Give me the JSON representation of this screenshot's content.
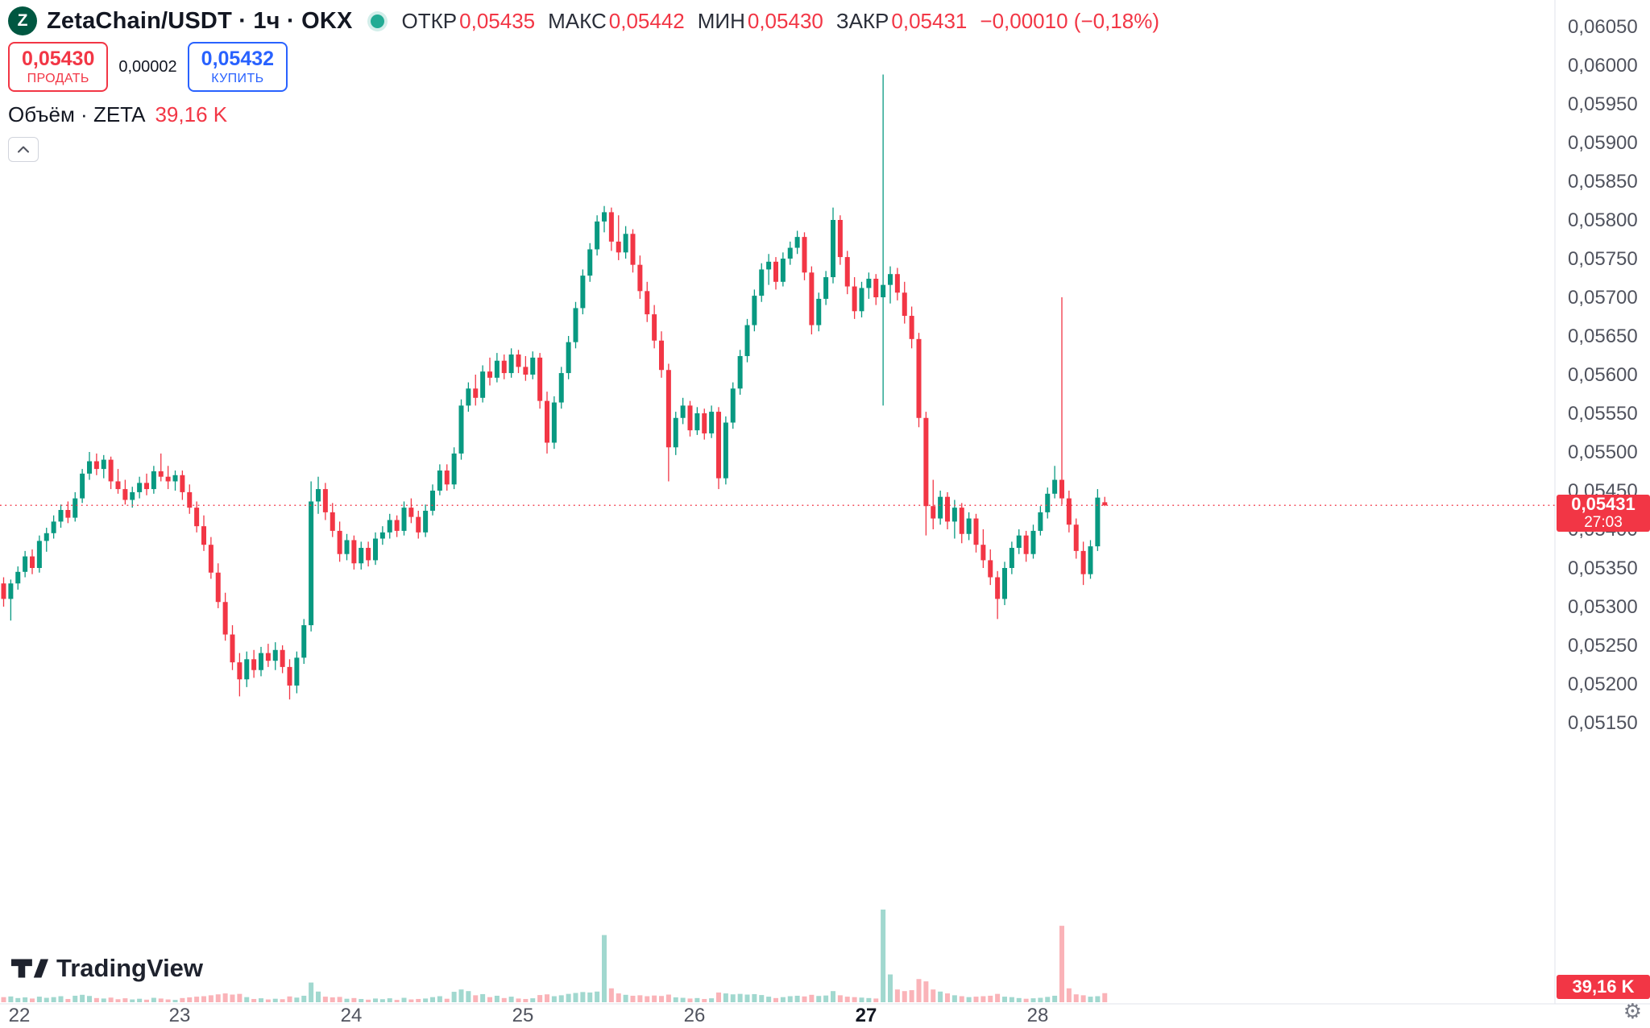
{
  "header": {
    "symbol": "ZetaChain/USDT · 1ч · OKX",
    "logo_letter": "Z",
    "ohlc": {
      "open_label": "ОТКР",
      "open_value": "0,05435",
      "high_label": "МАКС",
      "high_value": "0,05442",
      "low_label": "МИН",
      "low_value": "0,05430",
      "close_label": "ЗАКР",
      "close_value": "0,05431",
      "change": "−0,00010 (−0,18%)"
    },
    "sell": {
      "price": "0,05430",
      "label": "ПРОДАТЬ"
    },
    "spread": "0,00002",
    "buy": {
      "price": "0,05432",
      "label": "КУПИТЬ"
    },
    "volume_label": "Объём · ZETA",
    "volume_value": "39,16 K"
  },
  "footer": {
    "logo_text": "TradingView",
    "settings_icon": "gear-icon"
  },
  "price_axis": {
    "ticks": [
      {
        "v": 0.0605,
        "label": "0,06050"
      },
      {
        "v": 0.06,
        "label": "0,06000"
      },
      {
        "v": 0.0595,
        "label": "0,05950"
      },
      {
        "v": 0.059,
        "label": "0,05900"
      },
      {
        "v": 0.0585,
        "label": "0,05850"
      },
      {
        "v": 0.058,
        "label": "0,05800"
      },
      {
        "v": 0.0575,
        "label": "0,05750"
      },
      {
        "v": 0.057,
        "label": "0,05700"
      },
      {
        "v": 0.0565,
        "label": "0,05650"
      },
      {
        "v": 0.056,
        "label": "0,05600"
      },
      {
        "v": 0.0555,
        "label": "0,05550"
      },
      {
        "v": 0.055,
        "label": "0,05500"
      },
      {
        "v": 0.0545,
        "label": "0,05450"
      },
      {
        "v": 0.054,
        "label": "0,05400"
      },
      {
        "v": 0.0535,
        "label": "0,05350"
      },
      {
        "v": 0.053,
        "label": "0,05300"
      },
      {
        "v": 0.0525,
        "label": "0,05250"
      },
      {
        "v": 0.052,
        "label": "0,05200"
      },
      {
        "v": 0.0515,
        "label": "0,05150"
      }
    ],
    "current_badge": {
      "price": "0,05431",
      "countdown": "27:03"
    },
    "volume_badge": "39,16 K"
  },
  "time_axis": {
    "ticks": [
      {
        "v": 22,
        "label": "22",
        "bold": false
      },
      {
        "v": 23,
        "label": "23",
        "bold": false
      },
      {
        "v": 24,
        "label": "24",
        "bold": false
      },
      {
        "v": 25,
        "label": "25",
        "bold": false
      },
      {
        "v": 26,
        "label": "26",
        "bold": false
      },
      {
        "v": 27,
        "label": "27",
        "bold": true
      },
      {
        "v": 28,
        "label": "28",
        "bold": false
      }
    ]
  },
  "colors": {
    "up": "#089981",
    "down": "#F23645",
    "buy_blue": "#2962FF",
    "sell_red": "#F23645",
    "badge_bg": "#F23645",
    "axis_text": "#50535E",
    "title_text": "#131722",
    "logo_green": "#005741",
    "status_dot": "#22ab94"
  },
  "chart_data": {
    "type": "candlestick",
    "title": "ZetaChain/USDT",
    "interval": "1ч",
    "exchange": "OKX",
    "current_price": 0.05431,
    "current_volume": 39160,
    "last_candle": {
      "open": 0.05435,
      "high": 0.05442,
      "low": 0.0543,
      "close": 0.05431,
      "change": -0.0001,
      "change_pct": -0.18
    },
    "y_axis": {
      "min": 0.0515,
      "max": 0.0605,
      "tick_step": 0.0005
    },
    "x_axis": {
      "unit": "day-of-month",
      "ticks": [
        22,
        23,
        24,
        25,
        26,
        27,
        28
      ]
    },
    "time_base": {
      "first_candle_day": 21.96,
      "hours_per_candle": 1
    },
    "legend": "candles are [open, high, low, close, volume], hourly from day 22 to day 28",
    "candles": [
      [
        0.0533,
        0.05338,
        0.053,
        0.0531,
        22000
      ],
      [
        0.0531,
        0.05335,
        0.05282,
        0.0533,
        25000
      ],
      [
        0.0533,
        0.05352,
        0.05322,
        0.05345,
        18000
      ],
      [
        0.05345,
        0.05372,
        0.05338,
        0.05365,
        21000
      ],
      [
        0.05365,
        0.05374,
        0.05342,
        0.0535,
        16000
      ],
      [
        0.0535,
        0.05392,
        0.05344,
        0.05385,
        24000
      ],
      [
        0.05385,
        0.05402,
        0.05371,
        0.05395,
        19000
      ],
      [
        0.05395,
        0.05418,
        0.05388,
        0.0541,
        22000
      ],
      [
        0.0541,
        0.05432,
        0.05402,
        0.05425,
        26000
      ],
      [
        0.05425,
        0.05436,
        0.05408,
        0.05415,
        14000
      ],
      [
        0.05415,
        0.05448,
        0.0541,
        0.0544,
        28000
      ],
      [
        0.0544,
        0.05478,
        0.05434,
        0.05472,
        32000
      ],
      [
        0.05472,
        0.055,
        0.05464,
        0.05488,
        27000
      ],
      [
        0.05488,
        0.05498,
        0.0547,
        0.05478,
        18000
      ],
      [
        0.05478,
        0.05496,
        0.05466,
        0.0549,
        16000
      ],
      [
        0.0549,
        0.05494,
        0.05452,
        0.05462,
        20000
      ],
      [
        0.05462,
        0.05478,
        0.05446,
        0.05452,
        13000
      ],
      [
        0.05452,
        0.05464,
        0.05432,
        0.05438,
        17000
      ],
      [
        0.05438,
        0.05455,
        0.05428,
        0.05448,
        12000
      ],
      [
        0.05448,
        0.05468,
        0.0544,
        0.0546,
        15000
      ],
      [
        0.0546,
        0.05472,
        0.05444,
        0.05452,
        11000
      ],
      [
        0.05452,
        0.05482,
        0.05446,
        0.05475,
        19000
      ],
      [
        0.05475,
        0.05498,
        0.05462,
        0.05468,
        16000
      ],
      [
        0.05468,
        0.05482,
        0.05452,
        0.05462,
        12000
      ],
      [
        0.05462,
        0.05476,
        0.0545,
        0.0547,
        10000
      ],
      [
        0.0547,
        0.05476,
        0.05438,
        0.05448,
        18000
      ],
      [
        0.05448,
        0.05458,
        0.0542,
        0.05428,
        21000
      ],
      [
        0.05428,
        0.05436,
        0.05396,
        0.05404,
        24000
      ],
      [
        0.05404,
        0.05418,
        0.05372,
        0.0538,
        26000
      ],
      [
        0.0538,
        0.0539,
        0.05336,
        0.05344,
        30000
      ],
      [
        0.05344,
        0.05356,
        0.05298,
        0.05306,
        34000
      ],
      [
        0.05306,
        0.05318,
        0.05256,
        0.05264,
        38000
      ],
      [
        0.05264,
        0.05276,
        0.05218,
        0.05228,
        33000
      ],
      [
        0.05228,
        0.0524,
        0.05184,
        0.05206,
        36000
      ],
      [
        0.05206,
        0.05242,
        0.05196,
        0.05232,
        22000
      ],
      [
        0.05232,
        0.05244,
        0.05208,
        0.05218,
        14000
      ],
      [
        0.05218,
        0.05248,
        0.0521,
        0.0524,
        17000
      ],
      [
        0.0524,
        0.05252,
        0.05222,
        0.0523,
        12000
      ],
      [
        0.0523,
        0.05254,
        0.05218,
        0.05244,
        15000
      ],
      [
        0.05244,
        0.0525,
        0.05214,
        0.05222,
        13000
      ],
      [
        0.05222,
        0.05232,
        0.0518,
        0.05198,
        25000
      ],
      [
        0.05198,
        0.05242,
        0.05188,
        0.05234,
        20000
      ],
      [
        0.05234,
        0.05284,
        0.05226,
        0.05276,
        28000
      ],
      [
        0.05276,
        0.05462,
        0.05268,
        0.05436,
        85000
      ],
      [
        0.05436,
        0.05468,
        0.0542,
        0.05452,
        46000
      ],
      [
        0.05452,
        0.0546,
        0.05412,
        0.05422,
        24000
      ],
      [
        0.05422,
        0.05434,
        0.0539,
        0.05398,
        21000
      ],
      [
        0.05398,
        0.0541,
        0.05358,
        0.05368,
        23000
      ],
      [
        0.05368,
        0.05394,
        0.0536,
        0.05386,
        15000
      ],
      [
        0.05386,
        0.05392,
        0.05348,
        0.05356,
        18000
      ],
      [
        0.05356,
        0.05384,
        0.05348,
        0.05376,
        14000
      ],
      [
        0.05376,
        0.05384,
        0.05352,
        0.0536,
        11000
      ],
      [
        0.0536,
        0.05396,
        0.05354,
        0.05388,
        16000
      ],
      [
        0.05388,
        0.05404,
        0.0538,
        0.05396,
        13000
      ],
      [
        0.05396,
        0.0542,
        0.05388,
        0.05412,
        17000
      ],
      [
        0.05412,
        0.05418,
        0.0539,
        0.05398,
        10000
      ],
      [
        0.05398,
        0.05436,
        0.05392,
        0.05428,
        19000
      ],
      [
        0.05428,
        0.0544,
        0.05408,
        0.05416,
        12000
      ],
      [
        0.05416,
        0.05424,
        0.05388,
        0.05396,
        14000
      ],
      [
        0.05396,
        0.05432,
        0.0539,
        0.05424,
        16000
      ],
      [
        0.05424,
        0.05458,
        0.05418,
        0.0545,
        22000
      ],
      [
        0.0545,
        0.05484,
        0.05444,
        0.05476,
        26000
      ],
      [
        0.05476,
        0.05484,
        0.0545,
        0.05458,
        15000
      ],
      [
        0.05458,
        0.05506,
        0.05452,
        0.05498,
        45000
      ],
      [
        0.05498,
        0.05568,
        0.0549,
        0.0556,
        55000
      ],
      [
        0.0556,
        0.0559,
        0.05552,
        0.05582,
        48000
      ],
      [
        0.05582,
        0.056,
        0.0556,
        0.0557,
        30000
      ],
      [
        0.0557,
        0.05612,
        0.05564,
        0.05604,
        35000
      ],
      [
        0.05604,
        0.05622,
        0.05586,
        0.05596,
        22000
      ],
      [
        0.05596,
        0.05628,
        0.0559,
        0.05618,
        28000
      ],
      [
        0.05618,
        0.05626,
        0.05594,
        0.05602,
        18000
      ],
      [
        0.05602,
        0.05634,
        0.05596,
        0.05626,
        24000
      ],
      [
        0.05626,
        0.05632,
        0.05602,
        0.0561,
        16000
      ],
      [
        0.0561,
        0.05624,
        0.05592,
        0.056,
        14000
      ],
      [
        0.056,
        0.0563,
        0.05594,
        0.05622,
        17000
      ],
      [
        0.05622,
        0.05628,
        0.05556,
        0.05566,
        31000
      ],
      [
        0.05566,
        0.05578,
        0.05498,
        0.05512,
        34000
      ],
      [
        0.05512,
        0.05572,
        0.05504,
        0.05564,
        26000
      ],
      [
        0.05564,
        0.0561,
        0.05556,
        0.05602,
        30000
      ],
      [
        0.05602,
        0.0565,
        0.05594,
        0.05642,
        36000
      ],
      [
        0.05642,
        0.05694,
        0.05634,
        0.05686,
        40000
      ],
      [
        0.05686,
        0.05736,
        0.05678,
        0.05728,
        44000
      ],
      [
        0.05728,
        0.0577,
        0.0572,
        0.05762,
        42000
      ],
      [
        0.05762,
        0.05806,
        0.05754,
        0.05798,
        46000
      ],
      [
        0.05798,
        0.05818,
        0.05784,
        0.0581,
        290000
      ],
      [
        0.0581,
        0.05816,
        0.0576,
        0.05772,
        60000
      ],
      [
        0.05772,
        0.05806,
        0.05748,
        0.05758,
        38000
      ],
      [
        0.05758,
        0.05792,
        0.0575,
        0.05782,
        32000
      ],
      [
        0.05782,
        0.05788,
        0.05732,
        0.05742,
        28000
      ],
      [
        0.05742,
        0.05754,
        0.05698,
        0.05708,
        30000
      ],
      [
        0.05708,
        0.0572,
        0.05668,
        0.05678,
        26000
      ],
      [
        0.05678,
        0.0569,
        0.05634,
        0.05644,
        29000
      ],
      [
        0.05644,
        0.05656,
        0.05596,
        0.05606,
        27000
      ],
      [
        0.05606,
        0.05614,
        0.05462,
        0.05506,
        33000
      ],
      [
        0.05506,
        0.05552,
        0.05496,
        0.05544,
        21000
      ],
      [
        0.05544,
        0.0557,
        0.05536,
        0.0556,
        19000
      ],
      [
        0.0556,
        0.05566,
        0.0552,
        0.05528,
        16000
      ],
      [
        0.05528,
        0.05558,
        0.05522,
        0.0555,
        18000
      ],
      [
        0.0555,
        0.05556,
        0.05516,
        0.05524,
        14000
      ],
      [
        0.05524,
        0.0556,
        0.05518,
        0.05552,
        17000
      ],
      [
        0.05552,
        0.05558,
        0.05452,
        0.05466,
        42000
      ],
      [
        0.05466,
        0.05546,
        0.05458,
        0.05538,
        38000
      ],
      [
        0.05538,
        0.0559,
        0.0553,
        0.05582,
        34000
      ],
      [
        0.05582,
        0.05632,
        0.05574,
        0.05624,
        36000
      ],
      [
        0.05624,
        0.05672,
        0.05616,
        0.05664,
        33000
      ],
      [
        0.05664,
        0.0571,
        0.05656,
        0.05702,
        35000
      ],
      [
        0.05702,
        0.05744,
        0.05694,
        0.05736,
        31000
      ],
      [
        0.05736,
        0.05756,
        0.05716,
        0.05746,
        24000
      ],
      [
        0.05746,
        0.05752,
        0.0571,
        0.0572,
        18000
      ],
      [
        0.0572,
        0.05758,
        0.05714,
        0.0575,
        22000
      ],
      [
        0.0575,
        0.05772,
        0.05742,
        0.05764,
        26000
      ],
      [
        0.05764,
        0.05786,
        0.05756,
        0.05778,
        28000
      ],
      [
        0.05778,
        0.05784,
        0.05722,
        0.05732,
        25000
      ],
      [
        0.05732,
        0.0574,
        0.05652,
        0.05664,
        32000
      ],
      [
        0.05664,
        0.05706,
        0.05656,
        0.05698,
        27000
      ],
      [
        0.05698,
        0.05734,
        0.0569,
        0.05726,
        29000
      ],
      [
        0.05726,
        0.05816,
        0.05718,
        0.058,
        48000
      ],
      [
        0.058,
        0.05806,
        0.05742,
        0.05752,
        30000
      ],
      [
        0.05752,
        0.0576,
        0.05704,
        0.05714,
        24000
      ],
      [
        0.05714,
        0.05726,
        0.05672,
        0.05682,
        22000
      ],
      [
        0.05682,
        0.0572,
        0.05674,
        0.05712,
        20000
      ],
      [
        0.05712,
        0.05732,
        0.05698,
        0.05724,
        18000
      ],
      [
        0.05724,
        0.0573,
        0.0569,
        0.057,
        16000
      ],
      [
        0.057,
        0.05988,
        0.0556,
        0.05716,
        400000
      ],
      [
        0.05716,
        0.0574,
        0.05692,
        0.0573,
        120000
      ],
      [
        0.0573,
        0.05738,
        0.05696,
        0.05706,
        55000
      ],
      [
        0.05706,
        0.0572,
        0.05666,
        0.05676,
        48000
      ],
      [
        0.05676,
        0.05688,
        0.05634,
        0.05646,
        52000
      ],
      [
        0.05646,
        0.05654,
        0.05532,
        0.05544,
        100000
      ],
      [
        0.05544,
        0.05552,
        0.05392,
        0.0543,
        90000
      ],
      [
        0.0543,
        0.05464,
        0.054,
        0.05414,
        55000
      ],
      [
        0.05414,
        0.0545,
        0.05406,
        0.05442,
        46000
      ],
      [
        0.05442,
        0.05448,
        0.054,
        0.0541,
        38000
      ],
      [
        0.0541,
        0.05438,
        0.05388,
        0.05428,
        30000
      ],
      [
        0.05428,
        0.05434,
        0.05382,
        0.05394,
        26000
      ],
      [
        0.05394,
        0.05422,
        0.05386,
        0.05414,
        22000
      ],
      [
        0.05414,
        0.0542,
        0.0537,
        0.0538,
        24000
      ],
      [
        0.0538,
        0.054,
        0.0535,
        0.0536,
        26000
      ],
      [
        0.0536,
        0.05374,
        0.05328,
        0.05338,
        28000
      ],
      [
        0.05338,
        0.05346,
        0.05284,
        0.0531,
        36000
      ],
      [
        0.0531,
        0.05358,
        0.05302,
        0.0535,
        24000
      ],
      [
        0.0535,
        0.05384,
        0.05342,
        0.05376,
        22000
      ],
      [
        0.05376,
        0.054,
        0.05368,
        0.05392,
        18000
      ],
      [
        0.05392,
        0.05398,
        0.05358,
        0.05368,
        15000
      ],
      [
        0.05368,
        0.05406,
        0.05362,
        0.05398,
        17000
      ],
      [
        0.05398,
        0.0543,
        0.05392,
        0.05422,
        19000
      ],
      [
        0.05422,
        0.05454,
        0.05414,
        0.05446,
        23000
      ],
      [
        0.05446,
        0.05482,
        0.0544,
        0.05464,
        28000
      ],
      [
        0.05464,
        0.057,
        0.05432,
        0.0544,
        330000
      ],
      [
        0.0544,
        0.0545,
        0.05396,
        0.05406,
        60000
      ],
      [
        0.05406,
        0.05414,
        0.05362,
        0.05372,
        34000
      ],
      [
        0.05372,
        0.05384,
        0.05328,
        0.05342,
        30000
      ],
      [
        0.05342,
        0.05386,
        0.05336,
        0.05378,
        24000
      ],
      [
        0.05378,
        0.05452,
        0.05372,
        0.05441,
        26000
      ],
      [
        0.05435,
        0.05442,
        0.0543,
        0.05431,
        39160
      ]
    ]
  }
}
